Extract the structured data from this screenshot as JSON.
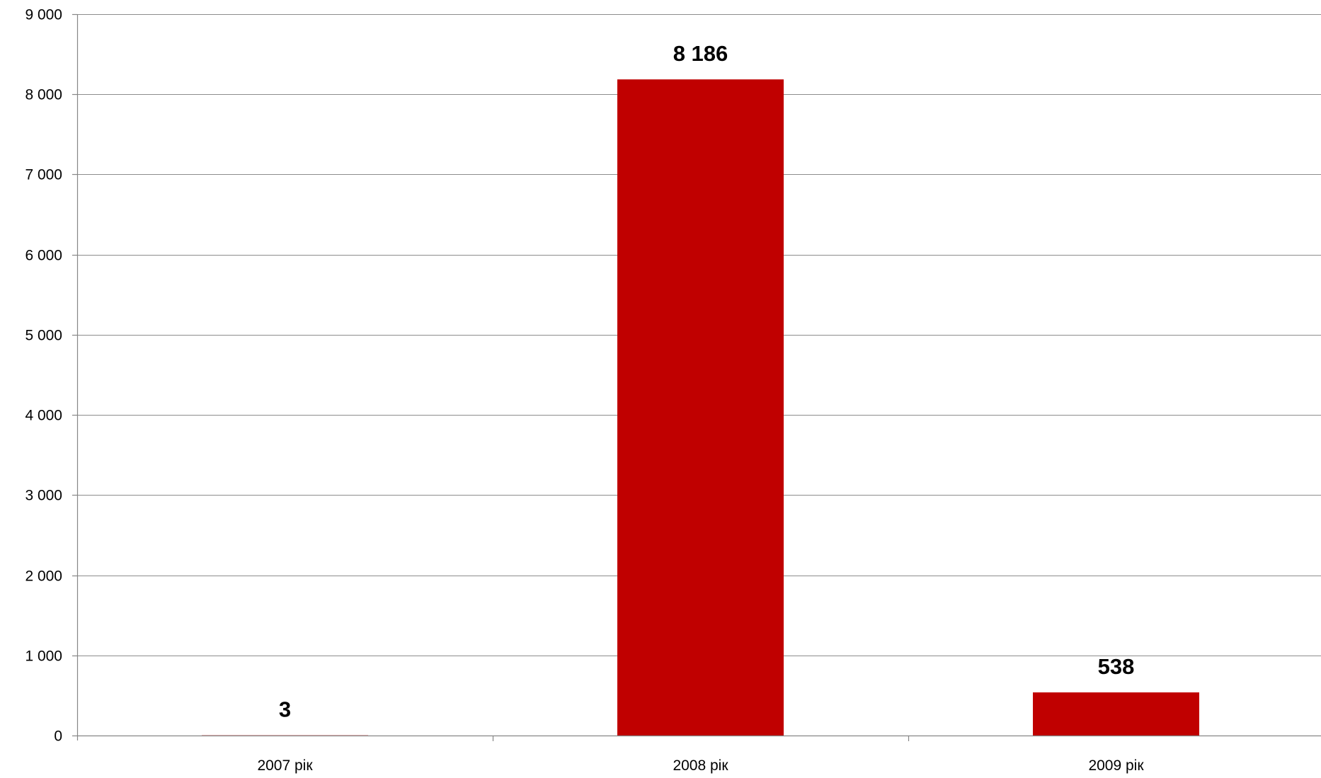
{
  "chart_data": {
    "type": "bar",
    "title": "",
    "xlabel": "",
    "ylabel": "",
    "categories": [
      "2007 рік",
      "2008 рік",
      "2009 рік"
    ],
    "values": [
      3,
      8186,
      538
    ],
    "data_labels": [
      "3",
      "8 186",
      "538"
    ],
    "ylim": [
      0,
      9000
    ],
    "yticks": [
      0,
      1000,
      2000,
      3000,
      4000,
      5000,
      6000,
      7000,
      8000,
      9000
    ],
    "ytick_labels": [
      "0",
      "1 000",
      "2 000",
      "3 000",
      "4 000",
      "5 000",
      "6 000",
      "7 000",
      "8 000",
      "9 000"
    ],
    "grid": true,
    "legend": "none",
    "bar_color": "#c00000"
  }
}
